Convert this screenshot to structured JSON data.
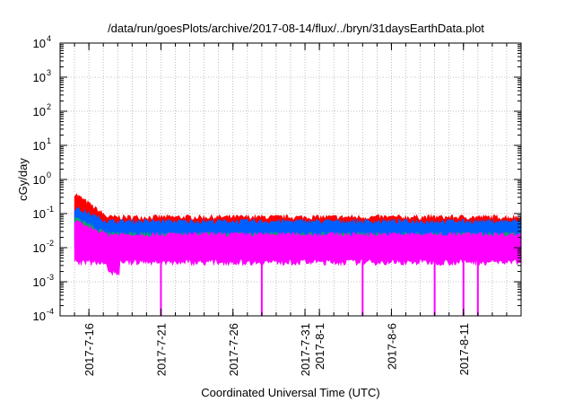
{
  "chart_data": {
    "type": "area",
    "title": "/data/run/goesPlots/archive/2017-08-14/flux/../bryn/31daysEarthData.plot",
    "xlabel": "Coordinated Universal Time (UTC)",
    "ylabel": "cGy/day",
    "yscale": "log",
    "ylim": [
      0.0001,
      10000
    ],
    "y_ticks": [
      {
        "base": "10",
        "exp": "-4"
      },
      {
        "base": "10",
        "exp": "-3"
      },
      {
        "base": "10",
        "exp": "-2"
      },
      {
        "base": "10",
        "exp": "-1"
      },
      {
        "base": "10",
        "exp": "0"
      },
      {
        "base": "10",
        "exp": "1"
      },
      {
        "base": "10",
        "exp": "2"
      },
      {
        "base": "10",
        "exp": "3"
      },
      {
        "base": "10",
        "exp": "4"
      }
    ],
    "xlim": [
      "2017-07-14",
      "2017-08-15"
    ],
    "x_ticks": [
      "2017-7-16",
      "2017-7-21",
      "2017-7-26",
      "2017-7-31",
      "2017-8-1",
      "2017-8-6",
      "2017-8-11"
    ],
    "grid": true,
    "series": [
      {
        "color": "#ff0000",
        "typical_min": 0.04,
        "typical_max": 0.08,
        "early_peak": 0.4
      },
      {
        "color": "#0060ff",
        "typical_min": 0.015,
        "typical_max": 0.06,
        "early_peak": 0.15
      },
      {
        "color": "#00aa66",
        "typical_min": 0.012,
        "typical_max": 0.025,
        "early_peak": 0.08
      },
      {
        "color": "#ff00ff",
        "typical_min": 0.004,
        "typical_max": 0.025,
        "early_peak": 0.06
      }
    ],
    "dropouts": [
      "2017-07-21",
      "2017-07-28",
      "2017-08-04",
      "2017-08-09",
      "2017-08-11",
      "2017-08-12"
    ],
    "dropout_min": 0.0001
  }
}
